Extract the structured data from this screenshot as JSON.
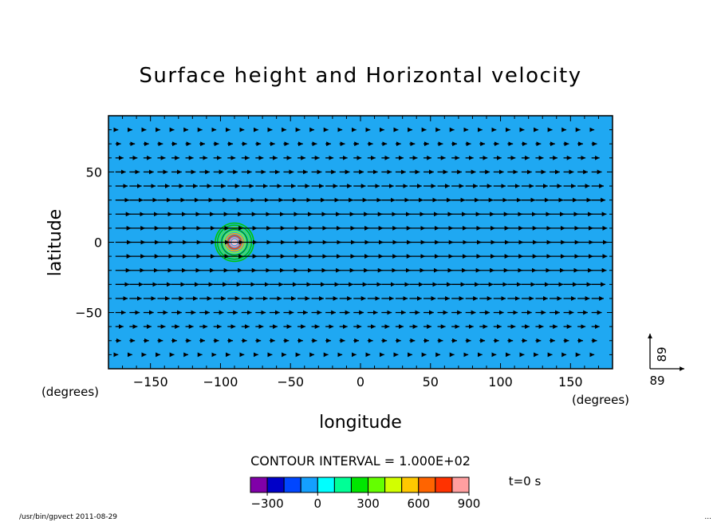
{
  "chart_data": {
    "type": "contour_vector",
    "title": "Surface height and Horizontal velocity",
    "xlabel": "longitude",
    "ylabel": "latitude",
    "x_unit_label": "(degrees)",
    "y_unit_label": "(degrees)",
    "xlim": [
      -180,
      180
    ],
    "ylim": [
      -90,
      90
    ],
    "x_ticks": [
      -150,
      -100,
      -50,
      0,
      50,
      100,
      150
    ],
    "y_ticks": [
      -50,
      0,
      50
    ],
    "x_tick_labels": [
      "−150",
      "−100",
      "−50",
      "0",
      "50",
      "100",
      "150"
    ],
    "y_tick_labels": [
      "−50",
      "0",
      "50"
    ],
    "background_color": "#1fa8f2",
    "contour_center": {
      "lon": -90,
      "lat": 0
    },
    "contour_levels": [
      100,
      200,
      300,
      400,
      500,
      600,
      700,
      800,
      900
    ],
    "contour_level_colors": [
      "#00c800",
      "#00c800",
      "#55ee33",
      "#00aa00",
      "#88ff22",
      "#ffaa00",
      "#ff3b00",
      "#ff8fa3",
      "#ffc8d0"
    ],
    "contour_interval_text": "CONTOUR INTERVAL = 1.000E+02",
    "time_text": "t=0 s",
    "vector_reference": {
      "x_label": "89",
      "y_label": "89"
    },
    "colorbar": {
      "colors": [
        "#8000a8",
        "#0000c8",
        "#0046ff",
        "#14a0ff",
        "#00ffff",
        "#00ff96",
        "#00e600",
        "#64ff00",
        "#d2ff00",
        "#ffc800",
        "#ff6400",
        "#ff3200",
        "#ff9fa0"
      ],
      "tick_labels": [
        "−300",
        "0",
        "300",
        "600",
        "900"
      ],
      "tick_values": [
        -300,
        0,
        300,
        600,
        900
      ],
      "min": -400,
      "max": 900
    }
  },
  "footer": {
    "left": "/usr/bin/gpvect   2011-08-29",
    "right": "..."
  }
}
